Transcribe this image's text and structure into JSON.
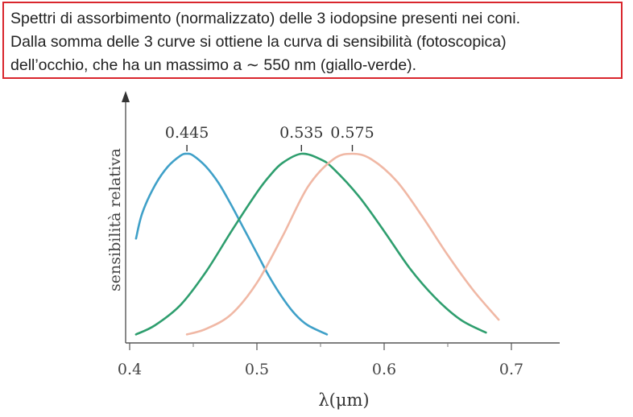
{
  "caption": {
    "line1": "Spettri di assorbimento (normalizzato) delle 3 iodopsine presenti nei coni.",
    "line2": "Dalla somma delle 3 curve si ottiene la curva di sensibilità (fotoscopica)",
    "line3": "dell’occhio, che ha un massimo a ∼ 550 nm (giallo-verde)."
  },
  "chart_data": {
    "type": "line",
    "title": "",
    "xlabel": "λ(μm)",
    "ylabel": "sensibilità relativa",
    "xlim": [
      0.4,
      0.7
    ],
    "ylim": [
      0,
      1
    ],
    "x_ticks": [
      "0.4",
      "0.5",
      "0.6",
      "0.7"
    ],
    "series": [
      {
        "color": "#3fa0c8",
        "x": [
          0.405,
          0.41,
          0.42,
          0.43,
          0.44,
          0.445,
          0.45,
          0.46,
          0.47,
          0.48,
          0.49,
          0.5,
          0.51,
          0.52,
          0.53,
          0.54,
          0.555
        ],
        "y": [
          0.54,
          0.68,
          0.83,
          0.93,
          0.99,
          1.0,
          0.99,
          0.93,
          0.84,
          0.72,
          0.59,
          0.46,
          0.33,
          0.22,
          0.13,
          0.07,
          0.02
        ]
      },
      {
        "color": "#2e9e6e",
        "x": [
          0.405,
          0.42,
          0.44,
          0.46,
          0.48,
          0.5,
          0.51,
          0.52,
          0.535,
          0.55,
          0.56,
          0.58,
          0.6,
          0.62,
          0.64,
          0.66,
          0.68
        ],
        "y": [
          0.02,
          0.07,
          0.18,
          0.36,
          0.58,
          0.79,
          0.88,
          0.95,
          1.0,
          0.97,
          0.92,
          0.77,
          0.58,
          0.38,
          0.22,
          0.1,
          0.03
        ]
      },
      {
        "color": "#f0b8a5",
        "x": [
          0.445,
          0.46,
          0.48,
          0.5,
          0.52,
          0.54,
          0.56,
          0.575,
          0.59,
          0.61,
          0.63,
          0.65,
          0.67,
          0.69
        ],
        "y": [
          0.02,
          0.05,
          0.13,
          0.3,
          0.55,
          0.82,
          0.97,
          1.0,
          0.97,
          0.85,
          0.66,
          0.45,
          0.26,
          0.1
        ]
      }
    ],
    "annotations": [
      {
        "text": "0.445",
        "x": 0.445
      },
      {
        "text": "0.535",
        "x": 0.535
      },
      {
        "text": "0.575",
        "x": 0.575
      }
    ]
  }
}
